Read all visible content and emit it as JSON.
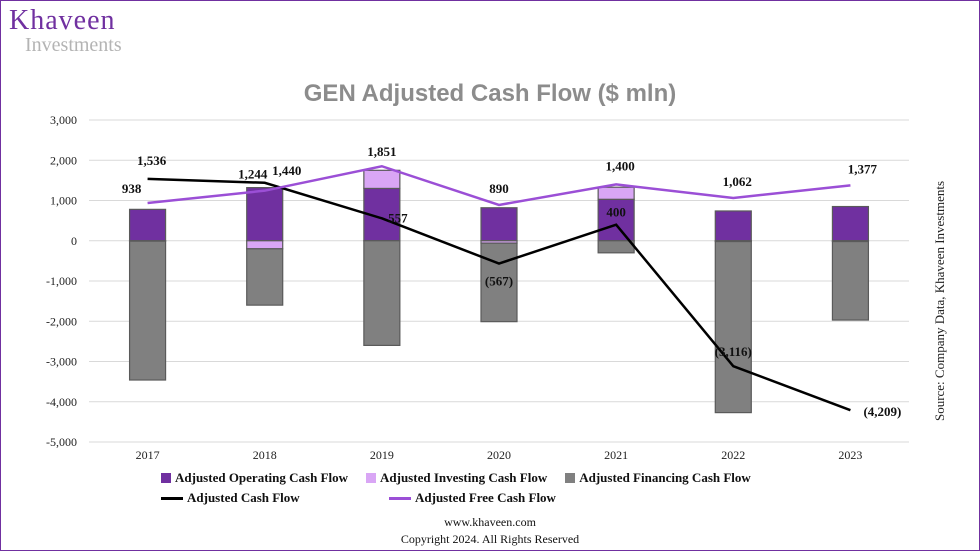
{
  "brand": {
    "name": "Khaveen",
    "sub": "Investments"
  },
  "footer": {
    "url": "www.khaveen.com",
    "copyright": "Copyright 2024. All Rights Reserved"
  },
  "source": "Source: Company Data, Khaveen Investments",
  "colors": {
    "operating": "#7030a0",
    "investing": "#d9a6f5",
    "financing": "#808080",
    "cash_flow": "#000000",
    "free_cash_flow": "#9b4fd6",
    "frame": "#7030a0"
  },
  "chart_data": {
    "type": "bar",
    "title": "GEN Adjusted Cash Flow ($ mln)",
    "categories": [
      "2017",
      "2018",
      "2019",
      "2020",
      "2021",
      "2022",
      "2023"
    ],
    "ylim": [
      -5000,
      3000
    ],
    "yticks": [
      3000,
      2000,
      1000,
      0,
      -1000,
      -2000,
      -3000,
      -4000,
      -5000
    ],
    "ytick_labels": [
      "3,000",
      "2,000",
      "1,000",
      "0",
      "-1,000",
      "-2,000",
      "-3,000",
      "-4,000",
      "-5,000"
    ],
    "grid": true,
    "legend_position": "bottom",
    "bar_series": [
      {
        "name": "Adjusted Operating Cash Flow",
        "values": [
          780,
          1320,
          1300,
          820,
          1030,
          740,
          850
        ]
      },
      {
        "name": "Adjusted Investing Cash Flow",
        "values": [
          -10,
          -200,
          450,
          -60,
          300,
          -20,
          -20
        ]
      },
      {
        "name": "Adjusted Financing Cash Flow",
        "values": [
          -3450,
          -1400,
          -2600,
          -1950,
          -300,
          -4250,
          -1950
        ]
      }
    ],
    "line_series": [
      {
        "name": "Adjusted Cash Flow",
        "values": [
          1536,
          1440,
          557,
          -567,
          400,
          -3116,
          -4209
        ],
        "labels": [
          "1,536",
          "1,440",
          "557",
          "(567)",
          "400",
          "(3,116)",
          "(4,209)"
        ]
      },
      {
        "name": "Adjusted Free Cash Flow",
        "values": [
          938,
          1244,
          1851,
          890,
          1400,
          1062,
          1377
        ],
        "labels": [
          "938",
          "1,244",
          "1,851",
          "890",
          "1,400",
          "1,062",
          "1,377"
        ]
      }
    ]
  }
}
